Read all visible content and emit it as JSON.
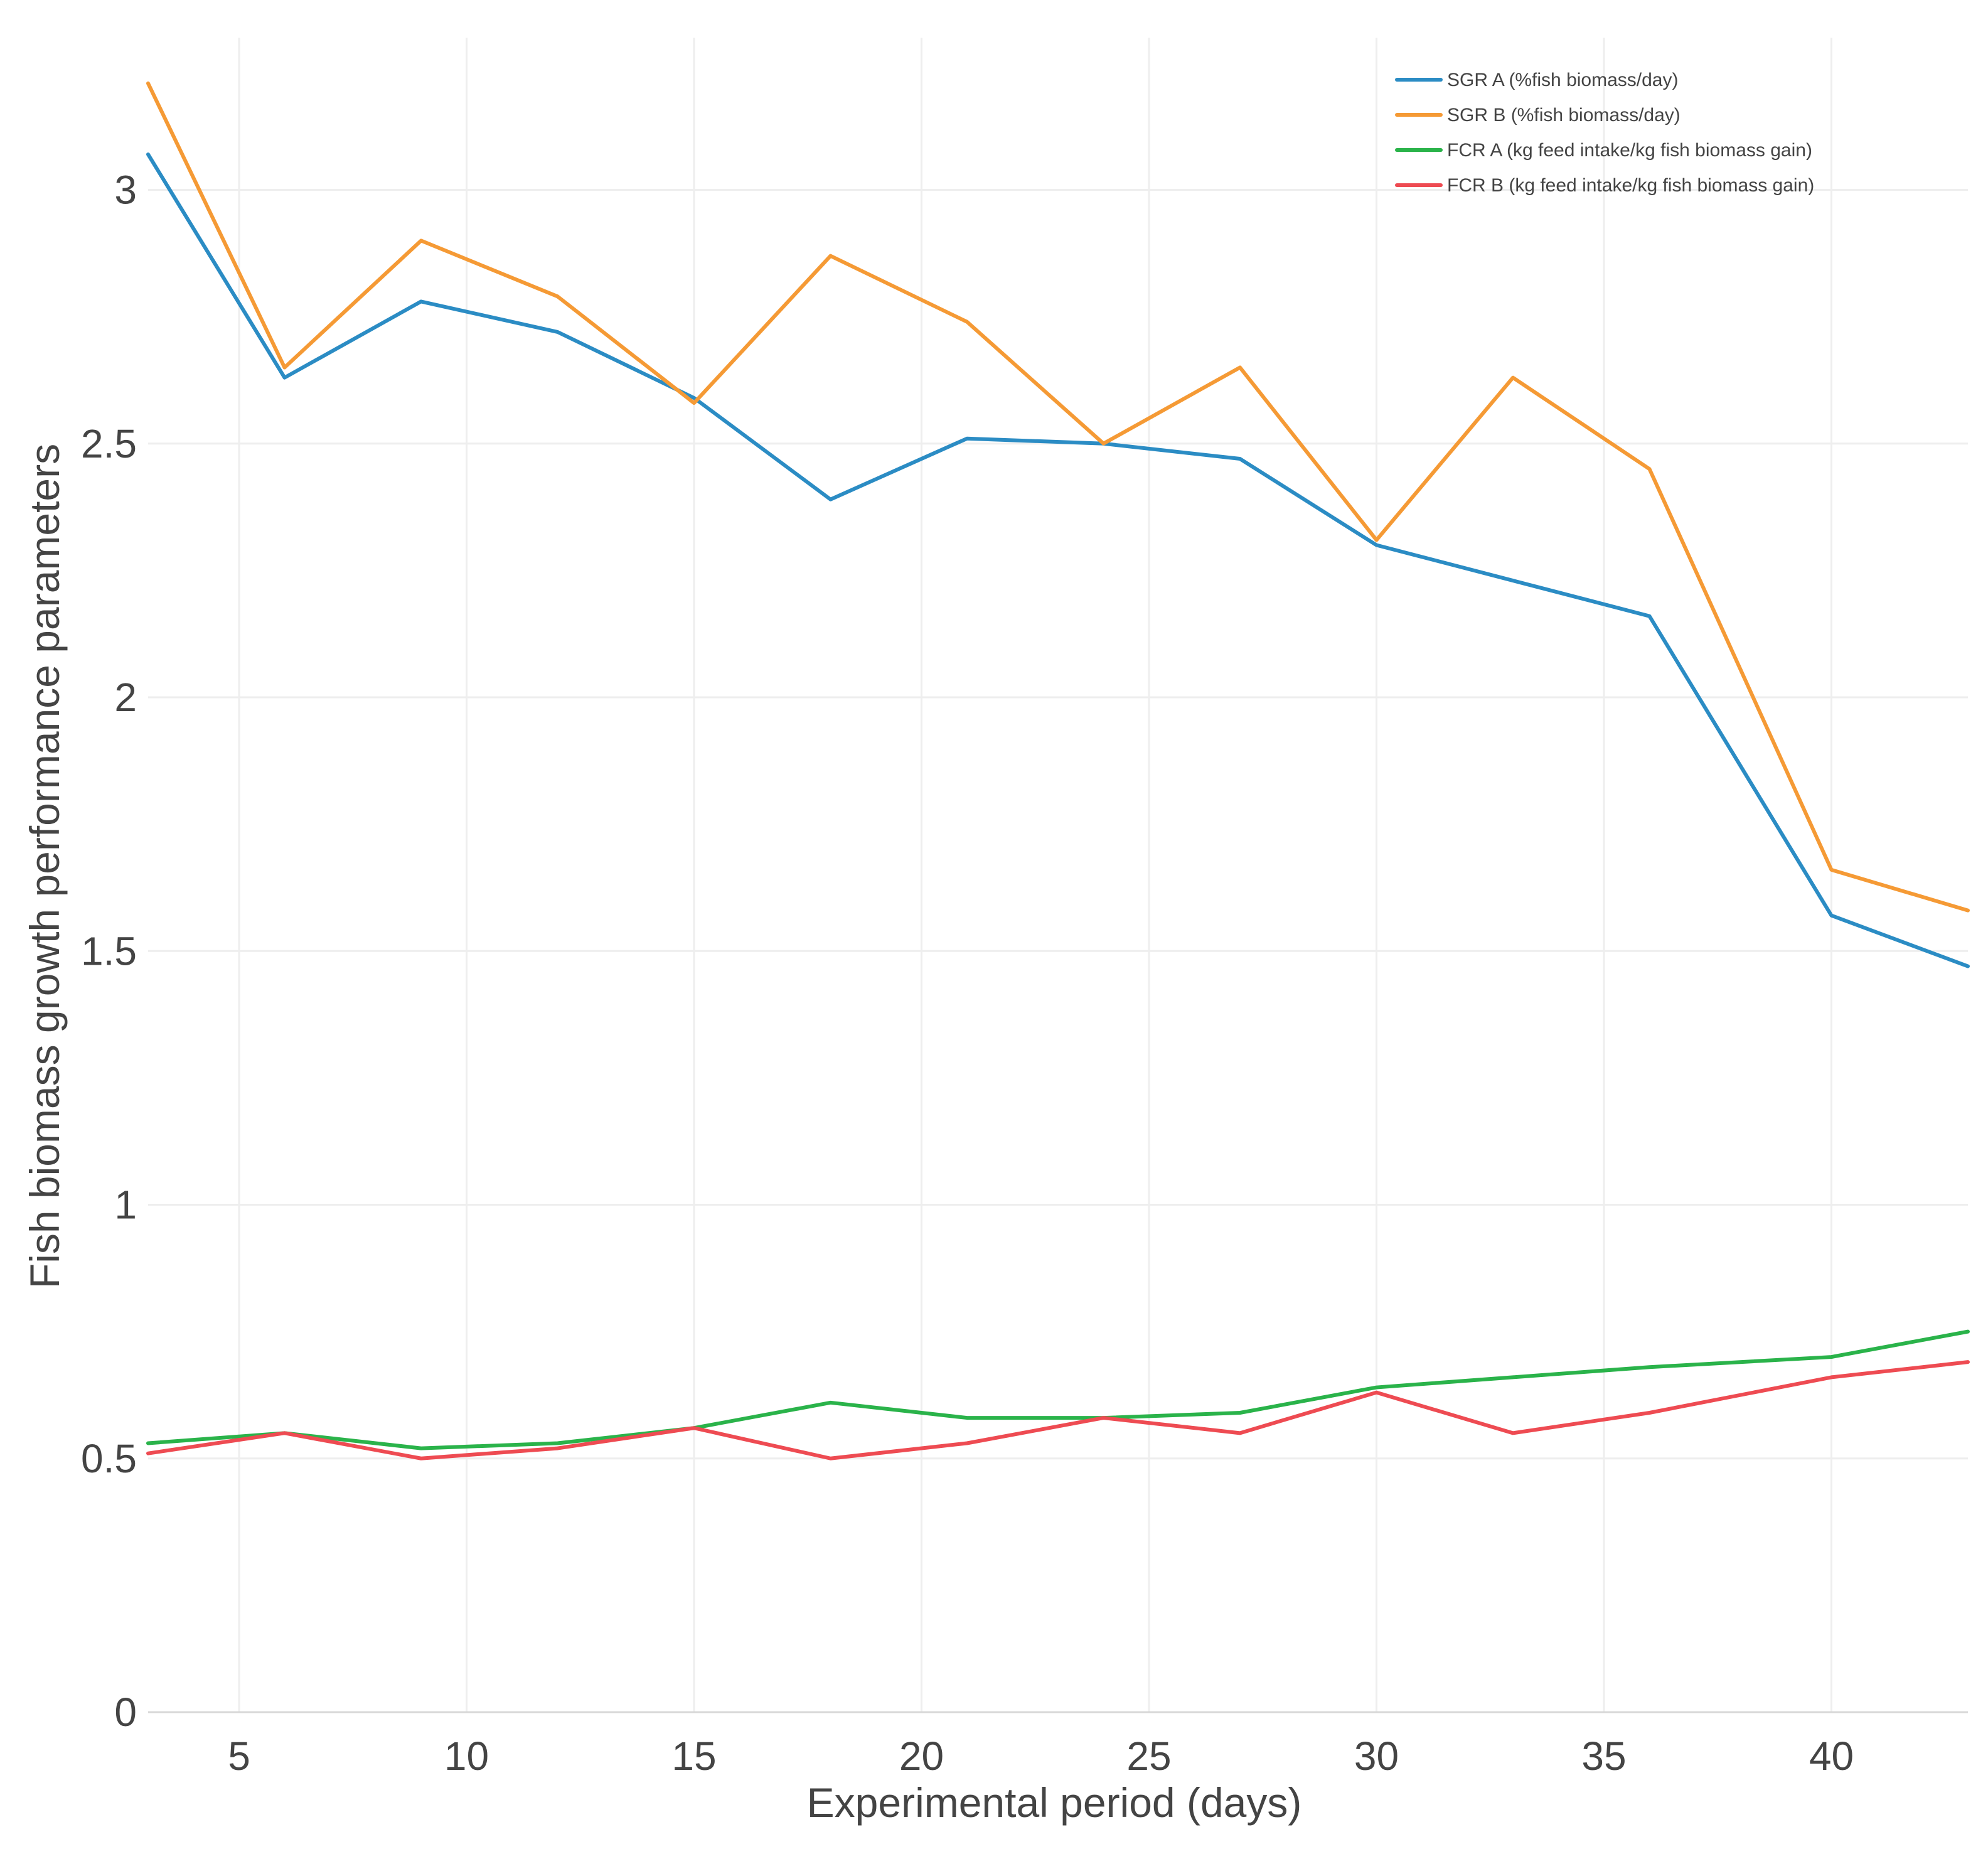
{
  "chart_data": {
    "type": "line",
    "title": "",
    "xlabel": "Experimental period (days)",
    "ylabel": "Fish biomass growth performance parameters",
    "xlim": [
      3,
      43
    ],
    "ylim": [
      0,
      3.3
    ],
    "grid": true,
    "legend_position": "top-right",
    "x_ticks": [
      5,
      10,
      15,
      20,
      25,
      30,
      35,
      40
    ],
    "y_ticks": [
      0,
      0.5,
      1,
      1.5,
      2,
      2.5,
      3
    ],
    "x_tick_labels": [
      "5",
      "10",
      "15",
      "20",
      "25",
      "30",
      "35",
      "40"
    ],
    "y_tick_labels": [
      "0",
      "0.5",
      "1",
      "1.5",
      "2",
      "2.5",
      "3"
    ],
    "x": [
      3,
      6,
      9,
      12,
      15,
      18,
      21,
      24,
      27,
      30,
      33,
      36,
      40,
      43
    ],
    "series": [
      {
        "name": "SGR A (%fish biomass/day)",
        "color": "#2b8cc4",
        "values": [
          3.07,
          2.63,
          2.78,
          2.72,
          2.59,
          2.39,
          2.51,
          2.5,
          2.47,
          2.3,
          2.23,
          2.16,
          1.57,
          1.47
        ]
      },
      {
        "name": "SGR B  (%fish biomass/day)",
        "color": "#f59a35",
        "values": [
          3.21,
          2.65,
          2.9,
          2.79,
          2.58,
          2.87,
          2.74,
          2.5,
          2.65,
          2.31,
          2.63,
          2.45,
          1.66,
          1.58
        ]
      },
      {
        "name": "FCR A (kg feed intake/kg fish biomass gain)",
        "color": "#2ab34a",
        "values": [
          0.53,
          0.55,
          0.52,
          0.53,
          0.56,
          0.61,
          0.58,
          0.58,
          0.59,
          0.64,
          0.66,
          0.68,
          0.7,
          0.75
        ]
      },
      {
        "name": "FCR B (kg feed intake/kg fish biomass gain)",
        "color": "#ee4b52",
        "values": [
          0.51,
          0.55,
          0.5,
          0.52,
          0.56,
          0.5,
          0.53,
          0.58,
          0.55,
          0.63,
          0.55,
          0.59,
          0.66,
          0.69
        ]
      }
    ]
  }
}
